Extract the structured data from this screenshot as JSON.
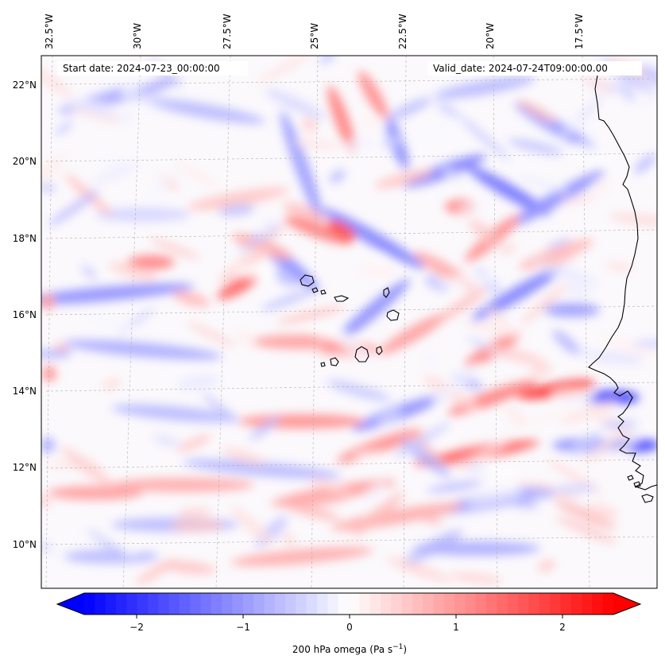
{
  "map": {
    "start_date": "Start date: 2024-07-23_00:00:00",
    "valid_date": "Valid_date: 2024-07-24T09:00:00.00",
    "lon_labels": [
      "32.5°W",
      "30°W",
      "27.5°W",
      "25°W",
      "22.5°W",
      "20°W",
      "17.5°W"
    ],
    "lat_labels": [
      "22°N",
      "20°N",
      "18°N",
      "16°N",
      "14°N",
      "12°N",
      "10°N"
    ],
    "colorbar": {
      "label": "200 hPa omega (Pa s",
      "label_sup": "−1",
      "label_close": ")",
      "ticks": [
        "−2",
        "−1",
        "0",
        "1",
        "2"
      ],
      "tick_values": [
        -2,
        -1,
        0,
        1,
        2
      ],
      "min": -2.6,
      "max": 2.6,
      "color_min": "#0000ff",
      "color_mid": "#ffffff",
      "color_max": "#ff0000"
    },
    "coastline_color": "#000000",
    "grid_color": "#b0b0b0"
  }
}
